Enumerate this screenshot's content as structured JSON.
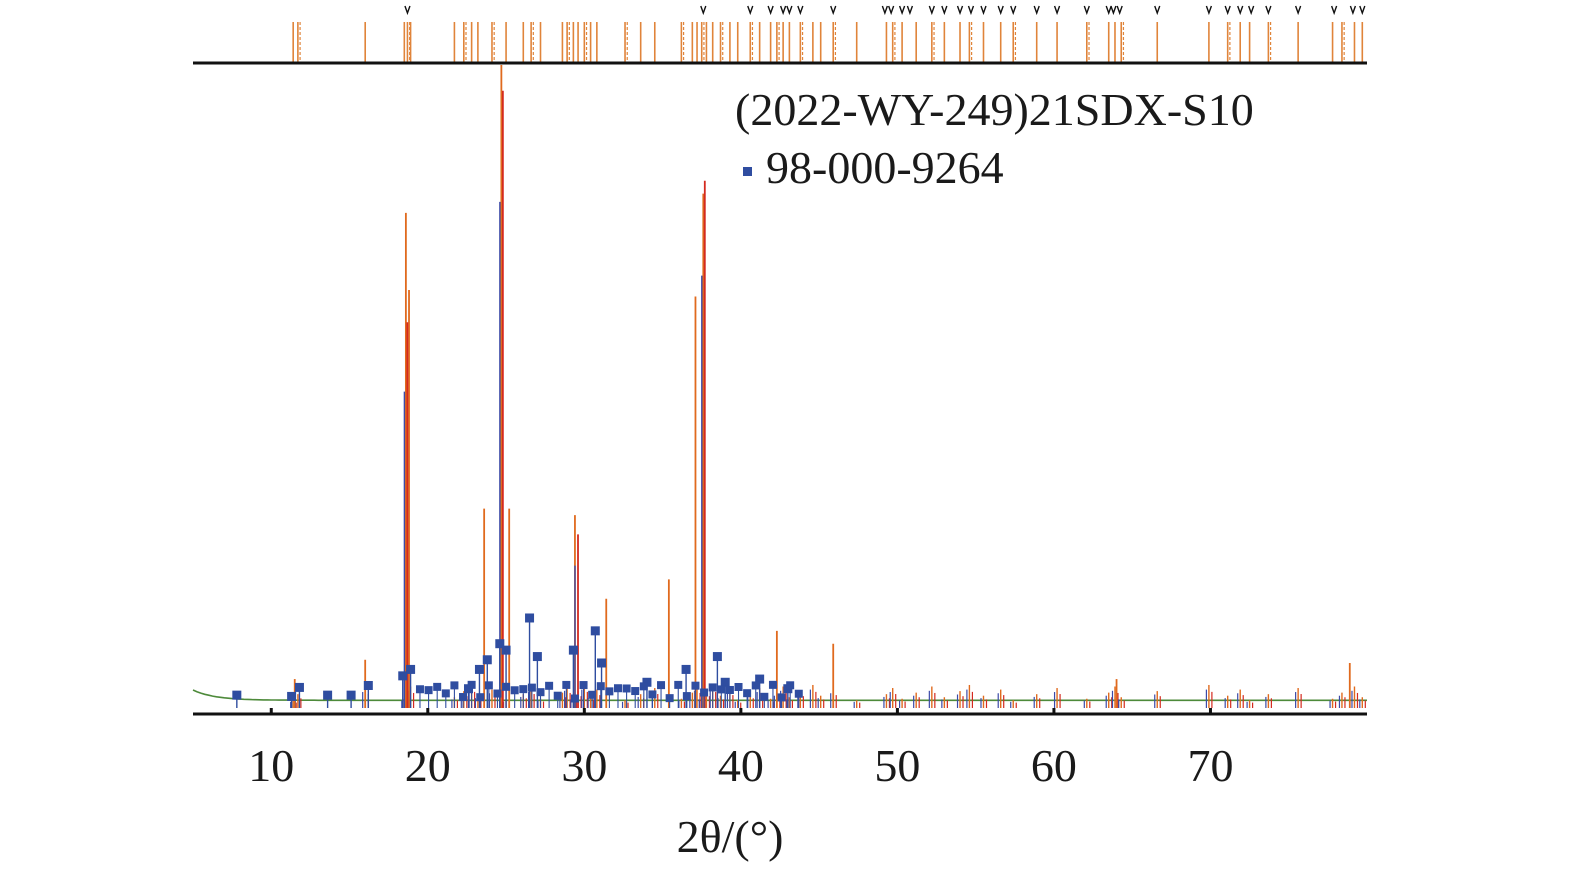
{
  "chart_data": {
    "type": "line",
    "title": "",
    "xlabel": "2θ/(°)",
    "ylabel": "",
    "xlim": [
      5,
      80
    ],
    "ylim": [
      0,
      100
    ],
    "grid": false,
    "legend_position": "top-right",
    "x_ticks": [
      10,
      20,
      30,
      40,
      50,
      60,
      70
    ],
    "legend": [
      {
        "label": "(2022-WY-249)21SDX-S10",
        "marker": "none",
        "color": "#1a1a1a"
      },
      {
        "label": "98-000-9264",
        "marker": "square",
        "color": "#2f4da0"
      }
    ],
    "colors": {
      "observed": "#e06a1e",
      "calculated": "#d42a1f",
      "reference": "#3b4aa8",
      "background": "#4d8a3a",
      "reference_marker": "#2f4da0",
      "tick_black": "#111111",
      "peak_stick": "#e0843a"
    },
    "series": [
      {
        "name": "(2022-WY-249)21SDX-S10",
        "role": "observed",
        "peaks": [
          {
            "x": 11.5,
            "y": 4.5
          },
          {
            "x": 16.0,
            "y": 7.5
          },
          {
            "x": 18.6,
            "y": 77
          },
          {
            "x": 18.8,
            "y": 65
          },
          {
            "x": 23.6,
            "y": 31
          },
          {
            "x": 24.7,
            "y": 100
          },
          {
            "x": 25.2,
            "y": 31
          },
          {
            "x": 29.4,
            "y": 30
          },
          {
            "x": 31.4,
            "y": 17
          },
          {
            "x": 35.4,
            "y": 20
          },
          {
            "x": 37.1,
            "y": 64
          },
          {
            "x": 37.6,
            "y": 80
          },
          {
            "x": 42.3,
            "y": 12
          },
          {
            "x": 45.9,
            "y": 10
          },
          {
            "x": 64.0,
            "y": 4.5
          },
          {
            "x": 78.9,
            "y": 7
          }
        ]
      },
      {
        "name": "calculated",
        "role": "calculated",
        "peaks": [
          {
            "x": 18.6,
            "y": 60
          },
          {
            "x": 24.7,
            "y": 96
          },
          {
            "x": 29.5,
            "y": 27
          },
          {
            "x": 37.6,
            "y": 82
          }
        ]
      },
      {
        "name": "98-000-9264",
        "role": "reference",
        "points": [
          {
            "x": 7.8,
            "y": 2.0
          },
          {
            "x": 11.3,
            "y": 1.8
          },
          {
            "x": 11.8,
            "y": 3.2
          },
          {
            "x": 13.6,
            "y": 2.0
          },
          {
            "x": 15.1,
            "y": 2.0
          },
          {
            "x": 16.2,
            "y": 3.5
          },
          {
            "x": 18.4,
            "y": 5.0
          },
          {
            "x": 18.9,
            "y": 6.0
          },
          {
            "x": 22.6,
            "y": 3.0
          },
          {
            "x": 23.3,
            "y": 6.0
          },
          {
            "x": 23.8,
            "y": 7.5
          },
          {
            "x": 24.6,
            "y": 10.0
          },
          {
            "x": 25.0,
            "y": 9.0
          },
          {
            "x": 26.5,
            "y": 14.0
          },
          {
            "x": 27.0,
            "y": 8.0
          },
          {
            "x": 29.3,
            "y": 9.0
          },
          {
            "x": 30.7,
            "y": 12.0
          },
          {
            "x": 31.1,
            "y": 7.0
          },
          {
            "x": 34.0,
            "y": 4.0
          },
          {
            "x": 36.5,
            "y": 6.0
          },
          {
            "x": 38.5,
            "y": 8.0
          },
          {
            "x": 39.0,
            "y": 4.0
          },
          {
            "x": 41.2,
            "y": 4.5
          },
          {
            "x": 43.0,
            "y": 3.0
          }
        ]
      }
    ],
    "reference_ticks": [
      11.4,
      11.7,
      16.0,
      18.5,
      18.7,
      18.9,
      21.7,
      22.3,
      22.8,
      23.2,
      24.1,
      25.0,
      26.1,
      26.6,
      27.2,
      28.6,
      28.9,
      29.3,
      29.6,
      30.0,
      30.4,
      30.8,
      32.6,
      33.6,
      34.5,
      36.2,
      36.9,
      37.2,
      37.5,
      37.8,
      38.2,
      38.7,
      39.3,
      39.8,
      40.6,
      41.2,
      41.9,
      42.3,
      42.7,
      43.1,
      43.8,
      44.6,
      45.1,
      45.9,
      47.4,
      49.3,
      49.7,
      50.3,
      51.2,
      52.2,
      53.0,
      54.0,
      54.6,
      55.5,
      56.6,
      57.4,
      58.9,
      60.2,
      62.1,
      63.5,
      63.9,
      64.3,
      66.6,
      69.9,
      71.1,
      71.9,
      72.5,
      73.7,
      75.6,
      77.8,
      78.4,
      79.2,
      79.7
    ],
    "hkl_markers": [
      18.7,
      37.6,
      40.6,
      41.9,
      42.7,
      43.1,
      43.8,
      45.9,
      49.2,
      49.6,
      50.3,
      50.8,
      52.2,
      53.0,
      54.0,
      54.7,
      55.5,
      56.6,
      57.4,
      58.9,
      60.2,
      62.1,
      63.5,
      63.8,
      64.2,
      66.6,
      69.9,
      71.1,
      71.9,
      72.6,
      73.7,
      75.6,
      77.9,
      79.1,
      79.7
    ]
  }
}
